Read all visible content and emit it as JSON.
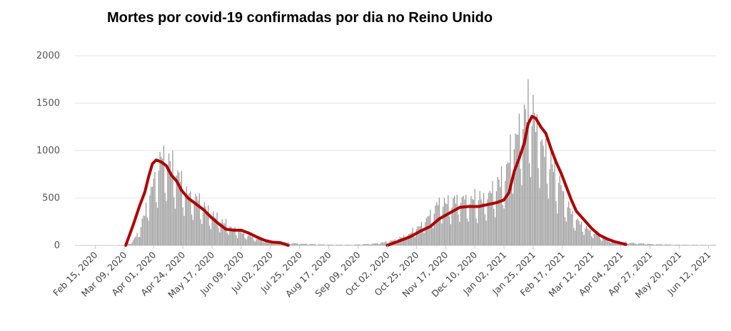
{
  "chart_data": {
    "type": "bar",
    "title": "Mortes por covid-19 confirmadas por dia no Reino Unido",
    "xlabel": "",
    "ylabel": "",
    "ylim": [
      0,
      2000
    ],
    "yticks": [
      0,
      500,
      1000,
      1500,
      2000
    ],
    "x_start_date": "2020-01-30",
    "x_end_date": "2021-06-18",
    "grid": true,
    "legend": "none",
    "colors": {
      "bars": "#9a9a9a",
      "trend": "#b00000",
      "grid": "#e6e6e6",
      "axis": "#c8c8d8"
    },
    "xtick_labels": [
      "Feb 15, 2020",
      "Mar 09, 2020",
      "Apr 01, 2020",
      "Apr 24, 2020",
      "May 17, 2020",
      "Jun 09, 2020",
      "Jul 02, 2020",
      "Jul 25, 2020",
      "Aug 17, 2020",
      "Sep 09, 2020",
      "Oct 02, 2020",
      "Oct 25, 2020",
      "Nov 17, 2020",
      "Dec 10, 2020",
      "Jan 02, 2021",
      "Jan 25, 2021",
      "Feb 17, 2021",
      "Mar 12, 2021",
      "Apr 04, 2021",
      "Apr 27, 2021",
      "May 20, 2021",
      "Jun 12, 2021"
    ],
    "daily_deaths_envelope": [
      [
        "2020-03-01",
        0
      ],
      [
        "2020-03-10",
        10
      ],
      [
        "2020-03-15",
        40
      ],
      [
        "2020-03-20",
        180
      ],
      [
        "2020-03-25",
        420
      ],
      [
        "2020-03-30",
        740
      ],
      [
        "2020-04-04",
        1020
      ],
      [
        "2020-04-08",
        1130
      ],
      [
        "2020-04-12",
        1050
      ],
      [
        "2020-04-17",
        1050
      ],
      [
        "2020-04-22",
        820
      ],
      [
        "2020-04-27",
        700
      ],
      [
        "2020-05-02",
        620
      ],
      [
        "2020-05-08",
        540
      ],
      [
        "2020-05-14",
        430
      ],
      [
        "2020-05-20",
        360
      ],
      [
        "2020-05-26",
        300
      ],
      [
        "2020-06-01",
        240
      ],
      [
        "2020-06-08",
        180
      ],
      [
        "2020-06-15",
        130
      ],
      [
        "2020-06-22",
        90
      ],
      [
        "2020-06-30",
        60
      ],
      [
        "2020-07-10",
        45
      ],
      [
        "2020-07-25",
        22
      ],
      [
        "2020-08-15",
        10
      ],
      [
        "2020-09-05",
        8
      ],
      [
        "2020-09-20",
        20
      ],
      [
        "2020-10-01",
        45
      ],
      [
        "2020-10-10",
        80
      ],
      [
        "2020-10-20",
        160
      ],
      [
        "2020-10-28",
        260
      ],
      [
        "2020-11-05",
        400
      ],
      [
        "2020-11-12",
        560
      ],
      [
        "2020-11-20",
        580
      ],
      [
        "2020-11-27",
        600
      ],
      [
        "2020-12-05",
        600
      ],
      [
        "2020-12-12",
        600
      ],
      [
        "2020-12-20",
        640
      ],
      [
        "2020-12-27",
        740
      ],
      [
        "2021-01-03",
        980
      ],
      [
        "2021-01-08",
        1250
      ],
      [
        "2021-01-13",
        1520
      ],
      [
        "2021-01-18",
        1650
      ],
      [
        "2021-01-21",
        1820
      ],
      [
        "2021-01-26",
        1680
      ],
      [
        "2021-01-31",
        1400
      ],
      [
        "2021-02-05",
        1200
      ],
      [
        "2021-02-10",
        1000
      ],
      [
        "2021-02-15",
        780
      ],
      [
        "2021-02-20",
        560
      ],
      [
        "2021-02-26",
        380
      ],
      [
        "2021-03-04",
        280
      ],
      [
        "2021-03-10",
        200
      ],
      [
        "2021-03-16",
        140
      ],
      [
        "2021-03-22",
        100
      ],
      [
        "2021-03-28",
        60
      ],
      [
        "2021-04-04",
        45
      ],
      [
        "2021-04-15",
        30
      ],
      [
        "2021-05-01",
        15
      ],
      [
        "2021-05-20",
        8
      ],
      [
        "2021-06-18",
        5
      ]
    ],
    "seven_day_average_series": [
      {
        "name": "",
        "points": [
          [
            "2020-03-10",
            0
          ],
          [
            "2020-03-16",
            220
          ],
          [
            "2020-03-21",
            420
          ],
          [
            "2020-03-25",
            560
          ],
          [
            "2020-03-28",
            720
          ],
          [
            "2020-03-31",
            860
          ],
          [
            "2020-04-03",
            900
          ],
          [
            "2020-04-07",
            880
          ],
          [
            "2020-04-11",
            840
          ],
          [
            "2020-04-15",
            740
          ],
          [
            "2020-04-19",
            680
          ],
          [
            "2020-04-23",
            580
          ],
          [
            "2020-04-28",
            500
          ],
          [
            "2020-05-04",
            440
          ],
          [
            "2020-05-10",
            380
          ],
          [
            "2020-05-16",
            300
          ],
          [
            "2020-05-22",
            230
          ],
          [
            "2020-05-28",
            170
          ],
          [
            "2020-06-03",
            160
          ],
          [
            "2020-06-09",
            160
          ],
          [
            "2020-06-15",
            130
          ],
          [
            "2020-06-21",
            90
          ],
          [
            "2020-06-27",
            55
          ],
          [
            "2020-07-03",
            35
          ],
          [
            "2020-07-10",
            28
          ],
          [
            "2020-07-16",
            0
          ]
        ]
      },
      {
        "name": "",
        "points": [
          [
            "2020-10-02",
            0
          ],
          [
            "2020-10-10",
            40
          ],
          [
            "2020-10-20",
            90
          ],
          [
            "2020-10-28",
            150
          ],
          [
            "2020-11-05",
            200
          ],
          [
            "2020-11-12",
            280
          ],
          [
            "2020-11-20",
            340
          ],
          [
            "2020-11-28",
            400
          ],
          [
            "2020-12-05",
            410
          ],
          [
            "2020-12-13",
            410
          ],
          [
            "2020-12-20",
            430
          ],
          [
            "2020-12-27",
            450
          ],
          [
            "2021-01-02",
            480
          ],
          [
            "2021-01-06",
            560
          ],
          [
            "2021-01-10",
            780
          ],
          [
            "2021-01-14",
            920
          ],
          [
            "2021-01-18",
            1080
          ],
          [
            "2021-01-21",
            1280
          ],
          [
            "2021-01-24",
            1360
          ],
          [
            "2021-01-27",
            1340
          ],
          [
            "2021-01-31",
            1250
          ],
          [
            "2021-02-04",
            1180
          ],
          [
            "2021-02-08",
            1020
          ],
          [
            "2021-02-12",
            880
          ],
          [
            "2021-02-16",
            760
          ],
          [
            "2021-02-20",
            620
          ],
          [
            "2021-02-24",
            480
          ],
          [
            "2021-02-28",
            360
          ],
          [
            "2021-03-06",
            270
          ],
          [
            "2021-03-12",
            180
          ],
          [
            "2021-03-18",
            110
          ],
          [
            "2021-03-24",
            70
          ],
          [
            "2021-03-30",
            40
          ],
          [
            "2021-04-05",
            20
          ],
          [
            "2021-04-08",
            10
          ]
        ]
      }
    ]
  }
}
